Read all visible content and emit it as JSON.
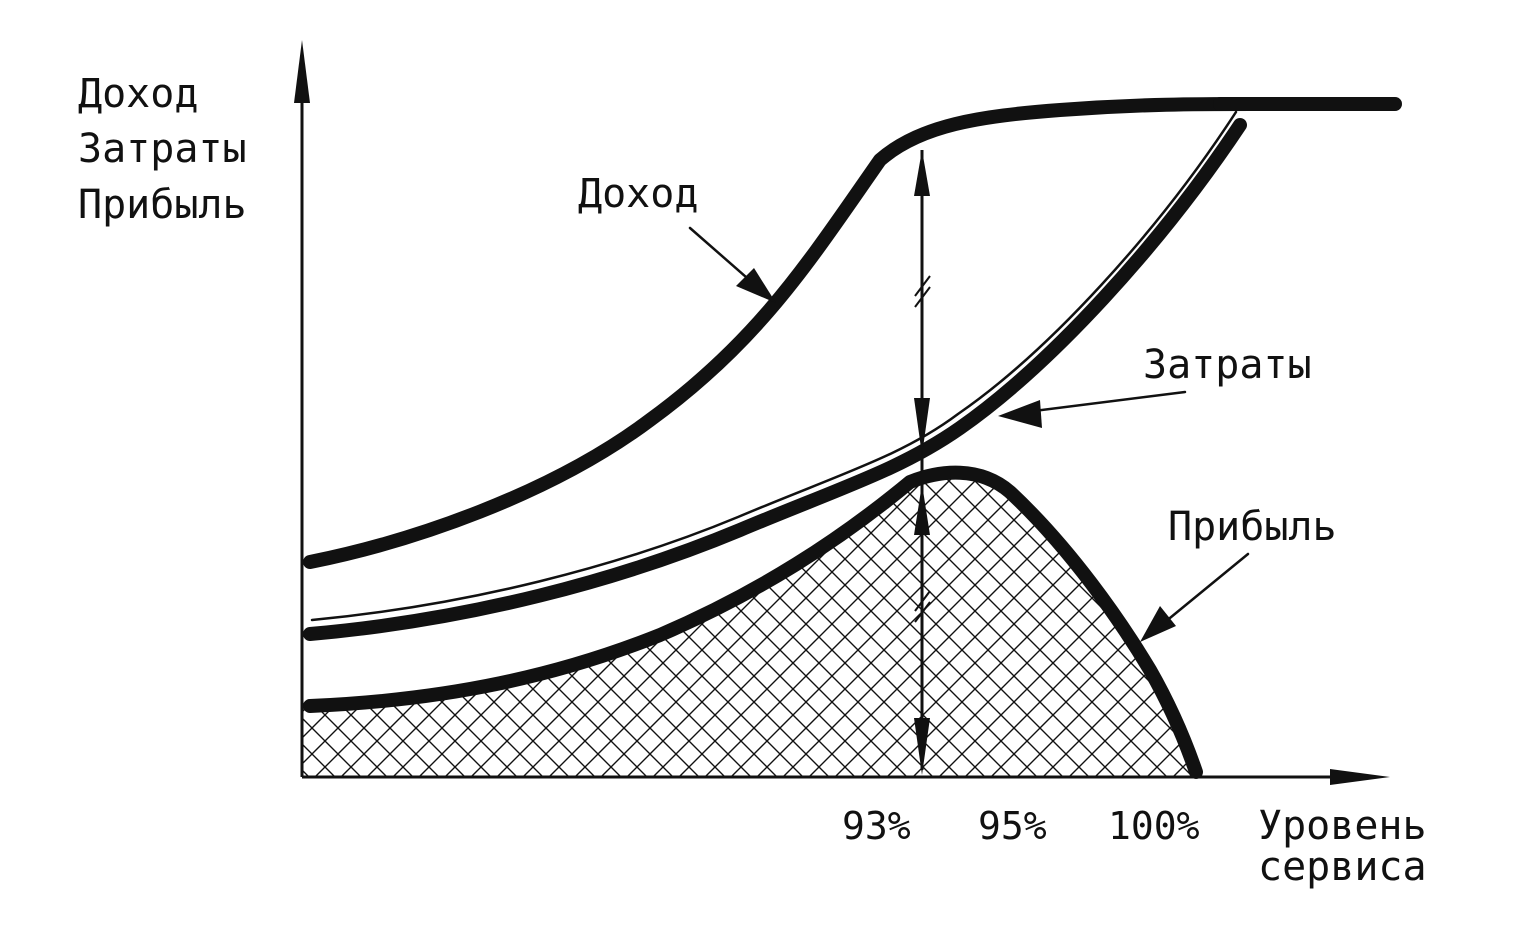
{
  "chart_data": {
    "type": "line",
    "title": "",
    "ylabel_lines": [
      "Доход",
      "Затраты",
      "Прибыль"
    ],
    "xlabel_lines": [
      "Уровень",
      "сервиса"
    ],
    "x_ticks": [
      "93%",
      "95%",
      "100%"
    ],
    "series": [
      {
        "name": "Доход"
      },
      {
        "name": "Затраты"
      },
      {
        "name": "Прибыль"
      }
    ],
    "grid": false,
    "legend": "none",
    "colors": {
      "ink": "#111111",
      "background": "#ffffff"
    }
  }
}
